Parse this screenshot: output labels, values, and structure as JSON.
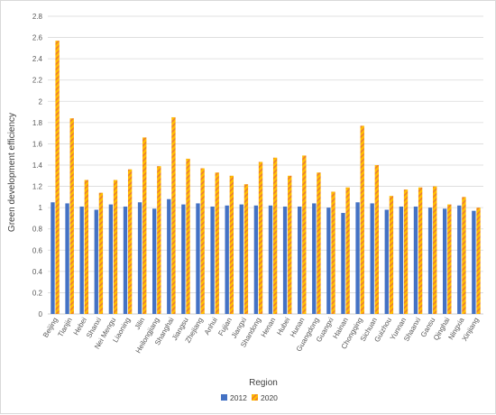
{
  "chart_data": {
    "type": "bar",
    "title": "",
    "xlabel": "Region",
    "ylabel": "Green development efficiency",
    "ylim": [
      0,
      2.8
    ],
    "ytick_step": 0.2,
    "ytick_labels": [
      "0",
      "0.2",
      "0.4",
      "0.6",
      "0.8",
      "1",
      "1.2",
      "1.4",
      "1.6",
      "1.8",
      "2",
      "2.2",
      "2.4",
      "2.6",
      "2.8"
    ],
    "grid": true,
    "legend_position": "bottom",
    "categories": [
      "Beijing",
      "Tianjin",
      "Hebei",
      "Shanxi",
      "Nei Mengu",
      "Liaoning",
      "Jilin",
      "Heilongjiang",
      "Shanghai",
      "Jiangsu",
      "Zhejiang",
      "Anhui",
      "Fujian",
      "Jiangxi",
      "Shandong",
      "Henan",
      "Hubei",
      "Hunan",
      "Guangdong",
      "Guangxi",
      "Hainan",
      "Chongqing",
      "Sichuan",
      "Guizhou",
      "Yunnan",
      "Shaanxi",
      "Gansu",
      "Qinghai",
      "Ningxia",
      "Xinjiang"
    ],
    "series": [
      {
        "name": "2012",
        "color": "#4472c4",
        "values": [
          1.05,
          1.04,
          1.01,
          0.98,
          1.03,
          1.01,
          1.05,
          0.99,
          1.08,
          1.03,
          1.04,
          1.01,
          1.02,
          1.03,
          1.02,
          1.02,
          1.01,
          1.01,
          1.04,
          1.0,
          0.95,
          1.05,
          1.04,
          0.98,
          1.01,
          1.01,
          1.0,
          0.99,
          1.02,
          0.97
        ]
      },
      {
        "name": "2020",
        "color": "#ffc000",
        "stripe_color": "#ed7d31",
        "values": [
          2.57,
          1.84,
          1.26,
          1.14,
          1.26,
          1.36,
          1.66,
          1.39,
          1.85,
          1.46,
          1.37,
          1.33,
          1.3,
          1.22,
          1.43,
          1.47,
          1.3,
          1.49,
          1.33,
          1.15,
          1.19,
          1.77,
          1.4,
          1.11,
          1.17,
          1.19,
          1.2,
          1.03,
          1.1,
          1.0
        ]
      }
    ]
  }
}
